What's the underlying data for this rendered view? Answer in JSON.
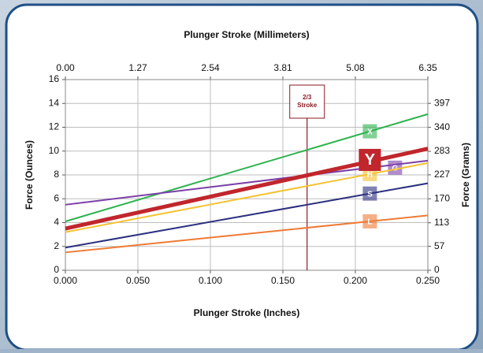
{
  "chart_data": {
    "type": "line",
    "title": "Plunger Stroke (Millimeters)",
    "xlabel": "Plunger Stroke (Inches)",
    "ylabel": "Force (Ounces)",
    "y2label": "Force (Grams)",
    "x": [
      0,
      0.25
    ],
    "xlim": [
      0,
      0.25
    ],
    "xticks": [
      {
        "value": 0,
        "label": "0.000"
      },
      {
        "value": 0.05,
        "label": "0.050"
      },
      {
        "value": 0.1,
        "label": "0.100"
      },
      {
        "value": 0.15,
        "label": "0.150"
      },
      {
        "value": 0.2,
        "label": "0.200"
      },
      {
        "value": 0.25,
        "label": "0.250"
      }
    ],
    "x2lim": [
      0,
      6.35
    ],
    "x2ticks": [
      {
        "value": 0,
        "label": "0.00"
      },
      1.27,
      2.54,
      3.81,
      5.08,
      6.35
    ],
    "ylim": [
      0,
      16
    ],
    "yticks": [
      0,
      2,
      4,
      6,
      8,
      10,
      12,
      14,
      16
    ],
    "y2lim": [
      0,
      453.6
    ],
    "y2ticks": [
      0,
      57,
      113,
      170,
      227,
      283,
      340,
      397
    ],
    "grid": true,
    "series": [
      {
        "name": "X",
        "color": "#2eb34f",
        "values": [
          4.1,
          13.1
        ]
      },
      {
        "name": "G",
        "color": "#7b3fa8",
        "values": [
          5.5,
          9.2
        ]
      },
      {
        "name": "H",
        "color": "#f5c232",
        "values": [
          3.2,
          9.0
        ]
      },
      {
        "name": "S",
        "color": "#2b2f7e",
        "values": [
          1.9,
          7.3
        ]
      },
      {
        "name": "L",
        "color": "#ee7a35",
        "values": [
          1.5,
          4.6
        ]
      },
      {
        "name": "Y",
        "color": "#c0262c",
        "values": [
          3.5,
          10.2
        ]
      }
    ],
    "annotations": [
      {
        "lines": [
          "2/3",
          "Stroke"
        ],
        "x": 0.1667
      }
    ]
  }
}
